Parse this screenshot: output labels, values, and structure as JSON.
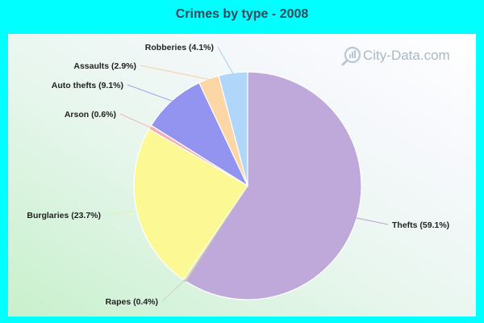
{
  "header": {
    "title": "Crimes by type - 2008"
  },
  "watermark": {
    "text": "City-Data.com"
  },
  "chart_data": {
    "type": "pie",
    "title": "Crimes by type - 2008",
    "start_angle_deg": 0,
    "direction": "clockwise",
    "slices": [
      {
        "label": "Thefts (59.1%)",
        "value": 59.1,
        "color": "#bea9da",
        "stroke": "#ffffff",
        "line": "#b7a5d3"
      },
      {
        "label": "Rapes (0.4%)",
        "value": 0.4,
        "color": "#e2e2c8",
        "stroke": "#bfbfa8",
        "line": "#c7d7bf"
      },
      {
        "label": "Burglaries (23.7%)",
        "value": 23.7,
        "color": "#fcf994",
        "stroke": "#ffffff",
        "line": "#e6efab"
      },
      {
        "label": "Arson (0.6%)",
        "value": 0.6,
        "color": "#f3b1b1",
        "stroke": "#ffffff",
        "line": "#f1b4b4"
      },
      {
        "label": "Auto thefts (9.1%)",
        "value": 9.1,
        "color": "#9393f0",
        "stroke": "#ffffff",
        "line": "#9aa3ea"
      },
      {
        "label": "Assaults (2.9%)",
        "value": 2.9,
        "color": "#fdd6a6",
        "stroke": "#ffffff",
        "line": "#f5d1a6"
      },
      {
        "label": "Robberies (4.1%)",
        "value": 4.1,
        "color": "#b0d7fa",
        "stroke": "#ffffff",
        "line": "#a9cdee"
      }
    ]
  },
  "colors": {
    "background": "#00ffff",
    "title": "#2b4a5a"
  }
}
